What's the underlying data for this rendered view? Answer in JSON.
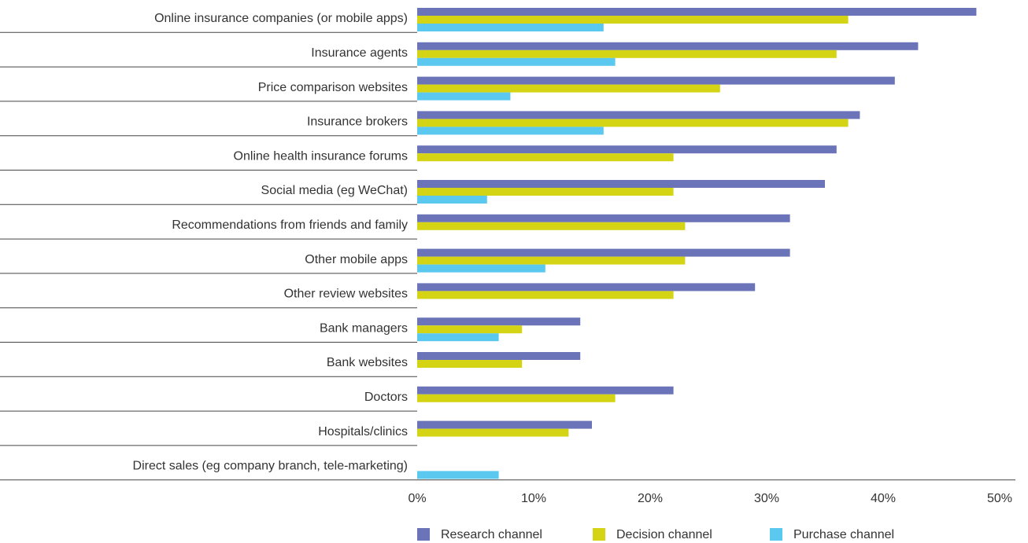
{
  "chart_data": {
    "type": "bar",
    "orientation": "horizontal",
    "categories": [
      "Online insurance companies (or mobile apps)",
      "Insurance agents",
      "Price comparison websites",
      "Insurance brokers",
      "Online health insurance forums",
      "Social media (eg WeChat)",
      "Recommendations from friends and family",
      "Other mobile apps",
      "Other review websites",
      "Bank managers",
      "Bank websites",
      "Doctors",
      "Hospitals/clinics",
      "Direct sales (eg company branch, tele-marketing)"
    ],
    "series": [
      {
        "name": "Research channel",
        "color": "#6b74b8",
        "values": [
          48,
          43,
          41,
          38,
          36,
          35,
          32,
          32,
          29,
          14,
          14,
          22,
          15,
          null
        ]
      },
      {
        "name": "Decision channel",
        "color": "#d4d414",
        "values": [
          37,
          36,
          26,
          37,
          22,
          22,
          23,
          23,
          22,
          9,
          9,
          17,
          13,
          null
        ]
      },
      {
        "name": "Purchase channel",
        "color": "#5bc8ef",
        "values": [
          16,
          17,
          8,
          16,
          null,
          6,
          null,
          11,
          null,
          7,
          null,
          null,
          null,
          7
        ]
      }
    ],
    "xlim": [
      0,
      50
    ],
    "xticks": [
      {
        "value": 0,
        "label": "0%"
      },
      {
        "value": 10,
        "label": "10%"
      },
      {
        "value": 20,
        "label": "20%"
      },
      {
        "value": 30,
        "label": "30%"
      },
      {
        "value": 40,
        "label": "40%"
      },
      {
        "value": 50,
        "label": "50%"
      }
    ],
    "legend": "bottom"
  }
}
